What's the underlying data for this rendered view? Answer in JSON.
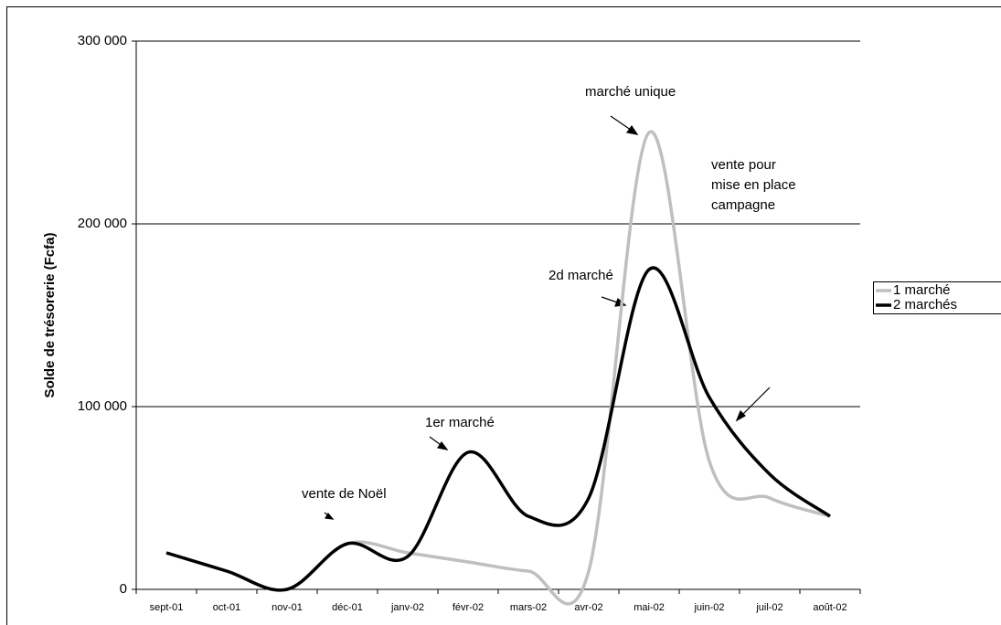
{
  "chart_data": {
    "type": "line",
    "y_label": "Solde de trésorerie (Fcfa)",
    "categories": [
      "sept-01",
      "oct-01",
      "nov-01",
      "déc-01",
      "janv-02",
      "févr-02",
      "mars-02",
      "avr-02",
      "mai-02",
      "juin-02",
      "juil-02",
      "août-02"
    ],
    "series": [
      {
        "name": "1 marché",
        "color": "#bfbfbf",
        "values": [
          20000,
          10000,
          0,
          25000,
          20000,
          15000,
          10000,
          10000,
          250000,
          70000,
          50000,
          40000
        ]
      },
      {
        "name": "2 marchés",
        "color": "#000000",
        "values": [
          20000,
          10000,
          0,
          25000,
          18000,
          75000,
          40000,
          50000,
          175000,
          105000,
          63000,
          40000
        ]
      }
    ],
    "ylim": [
      0,
      300000
    ],
    "yticks": [
      0,
      {
        "value": 100000,
        "label": "100 000"
      },
      {
        "value": 200000,
        "label": "200 000"
      },
      {
        "value": 300000,
        "label": "300 000"
      }
    ],
    "grid": true,
    "legend": "right",
    "annotations": [
      {
        "lines": [
          "marché unique"
        ]
      },
      {
        "lines": [
          "2d marché"
        ]
      },
      {
        "lines": [
          "1er marché"
        ]
      },
      {
        "lines": [
          "vente de Noël"
        ]
      },
      {
        "lines": [
          "vente pour",
          "mise en place",
          "campagne"
        ]
      }
    ]
  }
}
